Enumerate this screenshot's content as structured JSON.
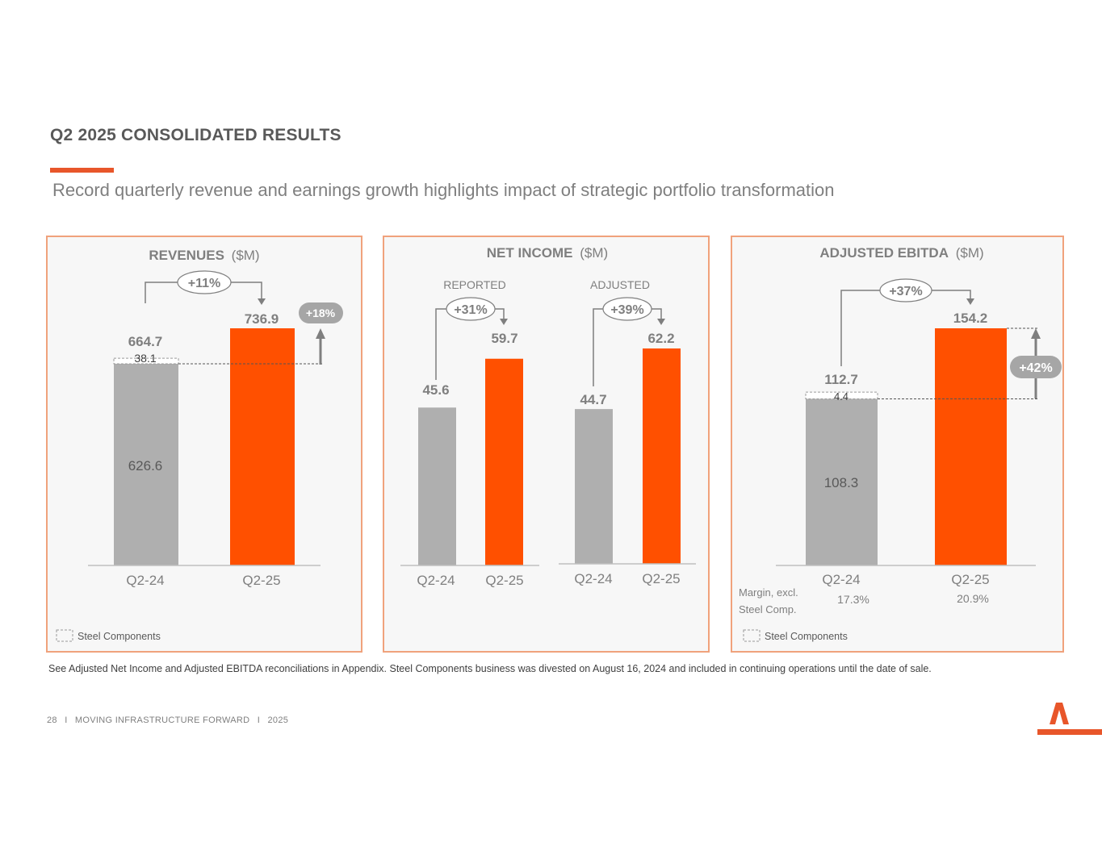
{
  "page": {
    "title": "Q2 2025 CONSOLIDATED RESULTS",
    "subtitle": "Record quarterly revenue and earnings growth highlights impact of strategic portfolio transformation",
    "footnote": "See Adjusted Net Income and Adjusted EBITDA reconciliations in Appendix. Steel Components business was divested on August 16, 2024 and included in continuing operations until the date of sale.",
    "footer": {
      "page_number": "28",
      "separator": "I",
      "tagline": "MOVING INFRASTRUCTURE FORWARD",
      "year": "2025"
    }
  },
  "colors": {
    "accent": "#FF5000",
    "bar_prior": "#AFAFAF",
    "panel_border": "#F0A27C",
    "text_gray": "#7F7F7F"
  },
  "chart_data": [
    {
      "id": "revenues",
      "type": "bar",
      "title": "REVENUES",
      "unit_label": "($M)",
      "categories": [
        "Q2-24",
        "Q2-25"
      ],
      "stacked_segments": [
        {
          "name": "Base",
          "values": [
            626.6,
            736.9
          ]
        },
        {
          "name": "Steel Components",
          "values": [
            38.1,
            0
          ]
        }
      ],
      "totals": [
        664.7,
        736.9
      ],
      "segment_labels": [
        "626.6",
        "38.1"
      ],
      "total_labels": [
        "664.7",
        "736.9"
      ],
      "growth_total": "+11%",
      "growth_excl_steel": "+18%",
      "legend": "Steel Components",
      "ylim": [
        0,
        736.9
      ]
    },
    {
      "id": "net-income",
      "type": "bar",
      "title": "NET INCOME",
      "unit_label": "($M)",
      "groups": [
        {
          "label": "REPORTED",
          "categories": [
            "Q2-24",
            "Q2-25"
          ],
          "values": [
            45.6,
            59.7
          ],
          "value_labels": [
            "45.6",
            "59.7"
          ],
          "growth": "+31%"
        },
        {
          "label": "ADJUSTED",
          "categories": [
            "Q2-24",
            "Q2-25"
          ],
          "values": [
            44.7,
            62.2
          ],
          "value_labels": [
            "44.7",
            "62.2"
          ],
          "growth": "+39%"
        }
      ],
      "ylim": [
        0,
        62.2
      ]
    },
    {
      "id": "adjusted-ebitda",
      "type": "bar",
      "title": "ADJUSTED EBITDA",
      "unit_label": "($M)",
      "categories": [
        "Q2-24",
        "Q2-25"
      ],
      "stacked_segments": [
        {
          "name": "Base",
          "values": [
            108.3,
            154.2
          ]
        },
        {
          "name": "Steel Components",
          "values": [
            4.4,
            0
          ]
        }
      ],
      "totals": [
        112.7,
        154.2
      ],
      "segment_labels": [
        "108.3",
        "4.4"
      ],
      "total_labels": [
        "112.7",
        "154.2"
      ],
      "growth_total": "+37%",
      "growth_excl_steel": "+42%",
      "margin_label_line1": "Margin, excl.",
      "margin_label_line2": "Steel Comp.",
      "margins": [
        "17.3%",
        "20.9%"
      ],
      "legend": "Steel Components",
      "ylim": [
        0,
        154.2
      ]
    }
  ]
}
